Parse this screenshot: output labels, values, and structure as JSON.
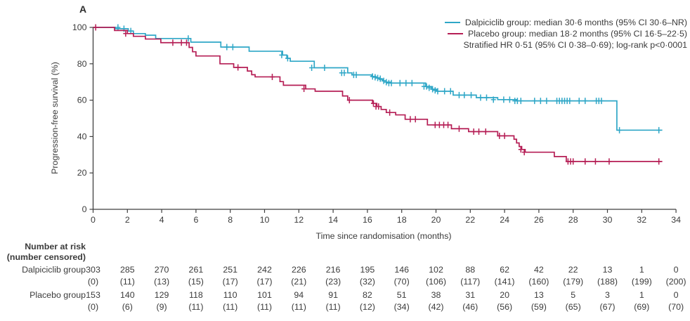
{
  "figure": {
    "panel_label": "A"
  },
  "chart_data": {
    "type": "line",
    "subtype": "kaplan-meier-step",
    "xlabel": "Time since randomisation (months)",
    "ylabel": "Progression-free survival (%)",
    "xlim": [
      0,
      34
    ],
    "ylim": [
      0,
      100
    ],
    "x_ticks": [
      0,
      2,
      4,
      6,
      8,
      10,
      12,
      14,
      16,
      18,
      20,
      22,
      24,
      26,
      28,
      30,
      32,
      34
    ],
    "y_ticks": [
      0,
      20,
      40,
      60,
      80,
      100
    ],
    "grid": "off",
    "legend_position": "top-right",
    "legend": [
      {
        "label": "Dalpiciclib group: median 30·6 months (95% CI 30·6–NR)",
        "color": "#2FA7C7"
      },
      {
        "label": "Placebo group: median 18·2 months (95% CI 16·5–22·5)",
        "color": "#B51E55"
      }
    ],
    "annotation": "Stratified HR 0·51 (95% CI 0·38–0·69); log-rank p<0·0001",
    "axis_color": "#3f3f3f",
    "series": [
      {
        "name": "Dalpiciclib group",
        "color": "#2FA7C7",
        "end": 33.2,
        "steps": [
          [
            0,
            100
          ],
          [
            1.3,
            99.3
          ],
          [
            2.05,
            98
          ],
          [
            2.35,
            96.6
          ],
          [
            3.05,
            95.7
          ],
          [
            3.65,
            93.9
          ],
          [
            5.7,
            91.9
          ],
          [
            7.45,
            89.2
          ],
          [
            9.1,
            86.9
          ],
          [
            11.05,
            84.8
          ],
          [
            11.3,
            83
          ],
          [
            11.5,
            81.4
          ],
          [
            12.9,
            77.8
          ],
          [
            14.85,
            75
          ],
          [
            15.1,
            73.9
          ],
          [
            16.25,
            73
          ],
          [
            16.5,
            72.2
          ],
          [
            16.7,
            71.4
          ],
          [
            16.9,
            70.6
          ],
          [
            17.1,
            69.9
          ],
          [
            17.35,
            69.4
          ],
          [
            19.4,
            67.5
          ],
          [
            19.75,
            66
          ],
          [
            20.05,
            64.9
          ],
          [
            21.0,
            62.8
          ],
          [
            22.35,
            61.4
          ],
          [
            23.6,
            60.3
          ],
          [
            24.7,
            59.6
          ],
          [
            30.55,
            43.5
          ]
        ],
        "censors": [
          [
            1.45,
            100
          ],
          [
            1.8,
            99.3
          ],
          [
            2.2,
            98
          ],
          [
            5.55,
            93.9
          ],
          [
            7.8,
            89.2
          ],
          [
            8.15,
            89.2
          ],
          [
            11.0,
            84.8
          ],
          [
            11.35,
            83
          ],
          [
            12.75,
            77.8
          ],
          [
            13.5,
            77.8
          ],
          [
            14.5,
            75
          ],
          [
            14.65,
            75
          ],
          [
            15.2,
            73.9
          ],
          [
            15.35,
            73.9
          ],
          [
            16.3,
            73
          ],
          [
            16.45,
            72.6
          ],
          [
            16.6,
            72.2
          ],
          [
            16.75,
            71.8
          ],
          [
            16.95,
            70.6
          ],
          [
            17.1,
            69.9
          ],
          [
            17.25,
            69.4
          ],
          [
            17.4,
            69.4
          ],
          [
            17.9,
            69.4
          ],
          [
            18.25,
            69.4
          ],
          [
            18.6,
            69.4
          ],
          [
            19.3,
            67.5
          ],
          [
            19.45,
            67.5
          ],
          [
            19.6,
            66.8
          ],
          [
            19.8,
            66
          ],
          [
            19.95,
            65.4
          ],
          [
            20.1,
            64.9
          ],
          [
            20.5,
            64.9
          ],
          [
            20.85,
            64.9
          ],
          [
            21.35,
            62.8
          ],
          [
            21.65,
            62.8
          ],
          [
            22.05,
            62.8
          ],
          [
            22.6,
            61.4
          ],
          [
            22.95,
            61.4
          ],
          [
            23.35,
            60.3
          ],
          [
            23.95,
            60.3
          ],
          [
            24.3,
            60.3
          ],
          [
            24.6,
            59.6
          ],
          [
            24.75,
            59.6
          ],
          [
            24.95,
            59.6
          ],
          [
            25.75,
            59.6
          ],
          [
            26.1,
            59.6
          ],
          [
            26.45,
            59.6
          ],
          [
            27.05,
            59.6
          ],
          [
            27.2,
            59.6
          ],
          [
            27.35,
            59.6
          ],
          [
            27.5,
            59.6
          ],
          [
            27.65,
            59.6
          ],
          [
            27.8,
            59.6
          ],
          [
            28.35,
            59.6
          ],
          [
            28.7,
            59.6
          ],
          [
            29.35,
            59.6
          ],
          [
            29.5,
            59.6
          ],
          [
            29.65,
            59.6
          ],
          [
            30.7,
            43.5
          ],
          [
            33.0,
            43.5
          ]
        ]
      },
      {
        "name": "Placebo group",
        "color": "#B51E55",
        "end": 33.2,
        "steps": [
          [
            0,
            100
          ],
          [
            1.25,
            98.3
          ],
          [
            2.0,
            96.6
          ],
          [
            2.35,
            95.1
          ],
          [
            3.05,
            93.6
          ],
          [
            3.95,
            91.6
          ],
          [
            5.6,
            89
          ],
          [
            5.8,
            86.6
          ],
          [
            6.0,
            84.3
          ],
          [
            7.4,
            80
          ],
          [
            8.2,
            78
          ],
          [
            9.0,
            76
          ],
          [
            9.25,
            74
          ],
          [
            9.45,
            72.8
          ],
          [
            10.9,
            70.2
          ],
          [
            11.1,
            68.2
          ],
          [
            12.4,
            66.2
          ],
          [
            12.95,
            64.9
          ],
          [
            14.55,
            62.3
          ],
          [
            14.85,
            60
          ],
          [
            16.3,
            58.2
          ],
          [
            16.55,
            56.5
          ],
          [
            16.8,
            54.9
          ],
          [
            17.1,
            53.2
          ],
          [
            17.65,
            51.9
          ],
          [
            18.2,
            49.5
          ],
          [
            19.5,
            46.4
          ],
          [
            20.9,
            44.3
          ],
          [
            21.9,
            42.7
          ],
          [
            23.6,
            40.4
          ],
          [
            24.55,
            38.5
          ],
          [
            24.7,
            36.5
          ],
          [
            24.85,
            34.5
          ],
          [
            25.0,
            32.9
          ],
          [
            25.2,
            31.4
          ],
          [
            26.9,
            29
          ],
          [
            27.6,
            26.3
          ]
        ],
        "censors": [
          [
            0.15,
            100
          ],
          [
            1.9,
            96.6
          ],
          [
            4.65,
            91.6
          ],
          [
            5.15,
            91.6
          ],
          [
            5.45,
            91.6
          ],
          [
            8.45,
            78
          ],
          [
            10.45,
            72.8
          ],
          [
            12.3,
            66.2
          ],
          [
            14.95,
            60
          ],
          [
            16.35,
            58.2
          ],
          [
            16.5,
            56.5
          ],
          [
            16.65,
            56.5
          ],
          [
            17.3,
            53.2
          ],
          [
            18.5,
            49.5
          ],
          [
            18.8,
            49.5
          ],
          [
            19.95,
            46.4
          ],
          [
            20.2,
            46.4
          ],
          [
            20.45,
            46.4
          ],
          [
            20.7,
            46.4
          ],
          [
            21.35,
            44.3
          ],
          [
            22.2,
            42.7
          ],
          [
            22.5,
            42.7
          ],
          [
            22.9,
            42.7
          ],
          [
            23.7,
            40.4
          ],
          [
            24.0,
            40.4
          ],
          [
            24.95,
            32.9
          ],
          [
            25.15,
            31.4
          ],
          [
            27.7,
            26.3
          ],
          [
            27.85,
            26.3
          ],
          [
            28.0,
            26.3
          ],
          [
            28.7,
            26.3
          ],
          [
            29.3,
            26.3
          ],
          [
            30.1,
            26.3
          ],
          [
            33.0,
            26.3
          ]
        ]
      }
    ]
  },
  "risk_table": {
    "header": [
      "Number at risk",
      "(number censored)"
    ],
    "times": [
      0,
      2,
      4,
      6,
      8,
      10,
      12,
      14,
      16,
      18,
      20,
      22,
      24,
      26,
      28,
      30,
      32,
      34
    ],
    "rows": [
      {
        "label": "Dalpiciclib group",
        "at_risk": [
          303,
          285,
          270,
          261,
          251,
          242,
          226,
          216,
          195,
          146,
          102,
          88,
          62,
          42,
          22,
          13,
          1,
          0
        ],
        "censored": [
          0,
          11,
          13,
          15,
          17,
          17,
          21,
          23,
          32,
          70,
          106,
          117,
          141,
          160,
          179,
          188,
          199,
          200
        ]
      },
      {
        "label": "Placebo group",
        "at_risk": [
          153,
          140,
          129,
          118,
          110,
          101,
          94,
          91,
          82,
          51,
          38,
          31,
          20,
          13,
          5,
          3,
          1,
          0
        ],
        "censored": [
          0,
          6,
          9,
          11,
          11,
          11,
          11,
          11,
          12,
          34,
          42,
          46,
          56,
          59,
          65,
          67,
          69,
          70
        ]
      }
    ]
  }
}
